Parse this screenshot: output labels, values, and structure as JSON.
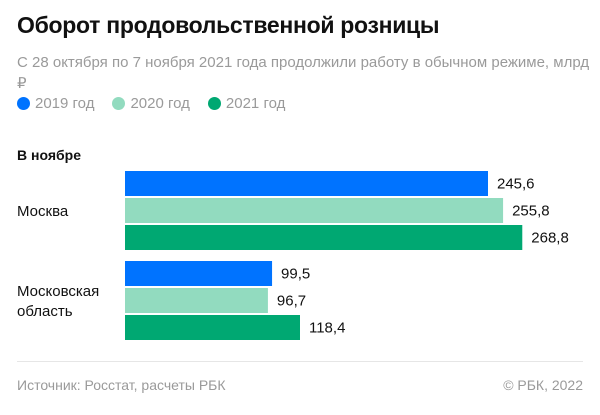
{
  "colors": {
    "y2019": "#0073ff",
    "y2020": "#92dbbf",
    "y2021": "#00a872"
  },
  "chart_data": {
    "type": "bar",
    "orientation": "horizontal",
    "title": "Оборот продовольственной розницы",
    "subtitle": "С 28 октября по 7 ноября 2021 года продолжили работу в обычном режиме, млрд ₽",
    "section_label": "В ноябре",
    "categories": [
      "Москва",
      "Московская область"
    ],
    "category_lines": [
      [
        "Москва"
      ],
      [
        "Московская",
        "область"
      ]
    ],
    "series": [
      {
        "name": "2019 год",
        "values": [
          245.6,
          99.5
        ],
        "labels": [
          "245,6",
          "99,5"
        ]
      },
      {
        "name": "2020 год",
        "values": [
          255.8,
          96.7
        ],
        "labels": [
          "255,8",
          "96,7"
        ]
      },
      {
        "name": "2021 год",
        "values": [
          268.8,
          118.4
        ],
        "labels": [
          "268,8",
          "118,4"
        ]
      }
    ],
    "xlim": [
      0,
      300
    ],
    "grid": false,
    "legend": "top-left"
  },
  "footer": {
    "source": "Источник: Росстат, расчеты РБК",
    "copyright": "© РБК, 2022"
  }
}
